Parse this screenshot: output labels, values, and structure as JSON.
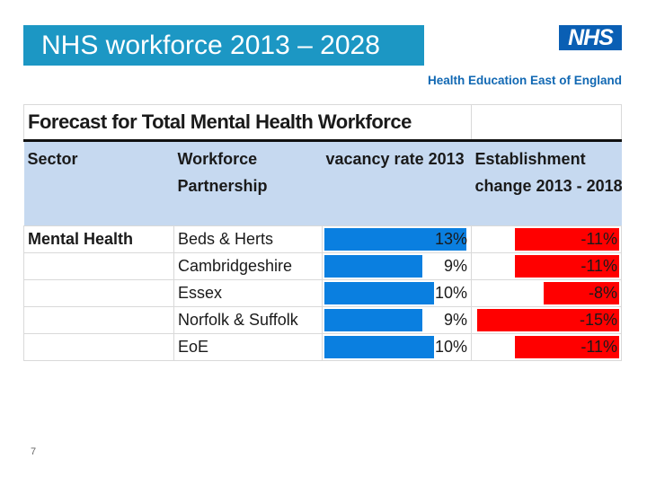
{
  "slide": {
    "title": "NHS workforce 2013 – 2028",
    "logo_text": "NHS",
    "org_name": "Health Education East of England",
    "page_number": "7"
  },
  "table": {
    "title": "Forecast for Total Mental Health Workforce",
    "headers": {
      "sector": "Sector",
      "partnership_line1": "Workforce",
      "partnership_line2": "Partnership",
      "vacancy": "vacancy  rate 2013",
      "change_line1": "Establishment",
      "change_line2": "change 2013 - 2018"
    },
    "rows": [
      {
        "sector": "Mental Health",
        "partnership": "Beds & Herts",
        "vacancy_label": "13%",
        "vacancy_value": 13,
        "change_label": "-11%",
        "change_value": -11
      },
      {
        "sector": "",
        "partnership": "Cambridgeshire",
        "vacancy_label": "9%",
        "vacancy_value": 9,
        "change_label": "-11%",
        "change_value": -11
      },
      {
        "sector": "",
        "partnership": "Essex",
        "vacancy_label": "10%",
        "vacancy_value": 10,
        "change_label": "-8%",
        "change_value": -8
      },
      {
        "sector": "",
        "partnership": "Norfolk & Suffolk",
        "vacancy_label": "9%",
        "vacancy_value": 9,
        "change_label": "-15%",
        "change_value": -15
      },
      {
        "sector": "",
        "partnership": "EoE",
        "vacancy_label": "10%",
        "vacancy_value": 10,
        "change_label": "-11%",
        "change_value": -11
      }
    ]
  },
  "colors": {
    "vacancy_bar": "#0a7fe0",
    "change_bar": "#ff0000",
    "header_bg": "#c6d9f0",
    "title_bar": "#1c97c4"
  }
}
